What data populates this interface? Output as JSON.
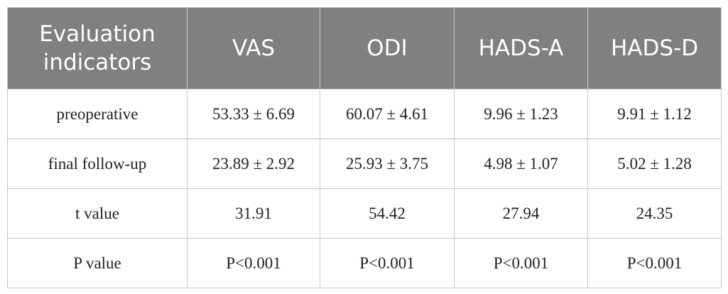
{
  "table": {
    "header": [
      "Evaluation indicators",
      "VAS",
      "ODI",
      "HADS-A",
      "HADS-D"
    ],
    "rows": [
      [
        "preoperative",
        "53.33 ± 6.69",
        "60.07 ± 4.61",
        "9.96 ± 1.23",
        "9.91 ± 1.12"
      ],
      [
        "final follow-up",
        "23.89 ± 2.92",
        "25.93 ± 3.75",
        "4.98 ± 1.07",
        "5.02 ± 1.28"
      ],
      [
        "t value",
        "31.91",
        "54.42",
        "27.94",
        "24.35"
      ],
      [
        "P value",
        "P<0.001",
        "P<0.001",
        "P<0.001",
        "P<0.001"
      ]
    ]
  }
}
